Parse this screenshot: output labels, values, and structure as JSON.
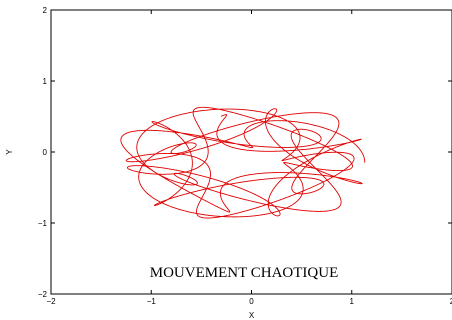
{
  "chart_data": {
    "type": "line",
    "title": "",
    "xlabel": "X",
    "ylabel": "Y",
    "xlim": [
      -2,
      2
    ],
    "ylim": [
      -2,
      2
    ],
    "xticks": [
      -2,
      -1,
      0,
      1,
      2
    ],
    "xtick_labels": [
      "−2",
      "−1",
      "0",
      "1",
      "2"
    ],
    "yticks": [
      -2,
      -1,
      0,
      1,
      2
    ],
    "ytick_labels": [
      "−2",
      "−1",
      "0",
      "1",
      "2"
    ],
    "grid": false,
    "legend": "none",
    "annotation": "MOUVEMENT CHAOTIQUE",
    "line_color": "#e00000",
    "series": [
      {
        "params": {
          "a": 0.86,
          "b": 0.36,
          "f1": 1.0,
          "f2": 3.14,
          "c": 0.5,
          "d": 0.28,
          "f3": 1.0,
          "f4": 2.71,
          "x0": -0.09,
          "y0": -0.15,
          "t_max": 40
        }
      }
    ]
  }
}
